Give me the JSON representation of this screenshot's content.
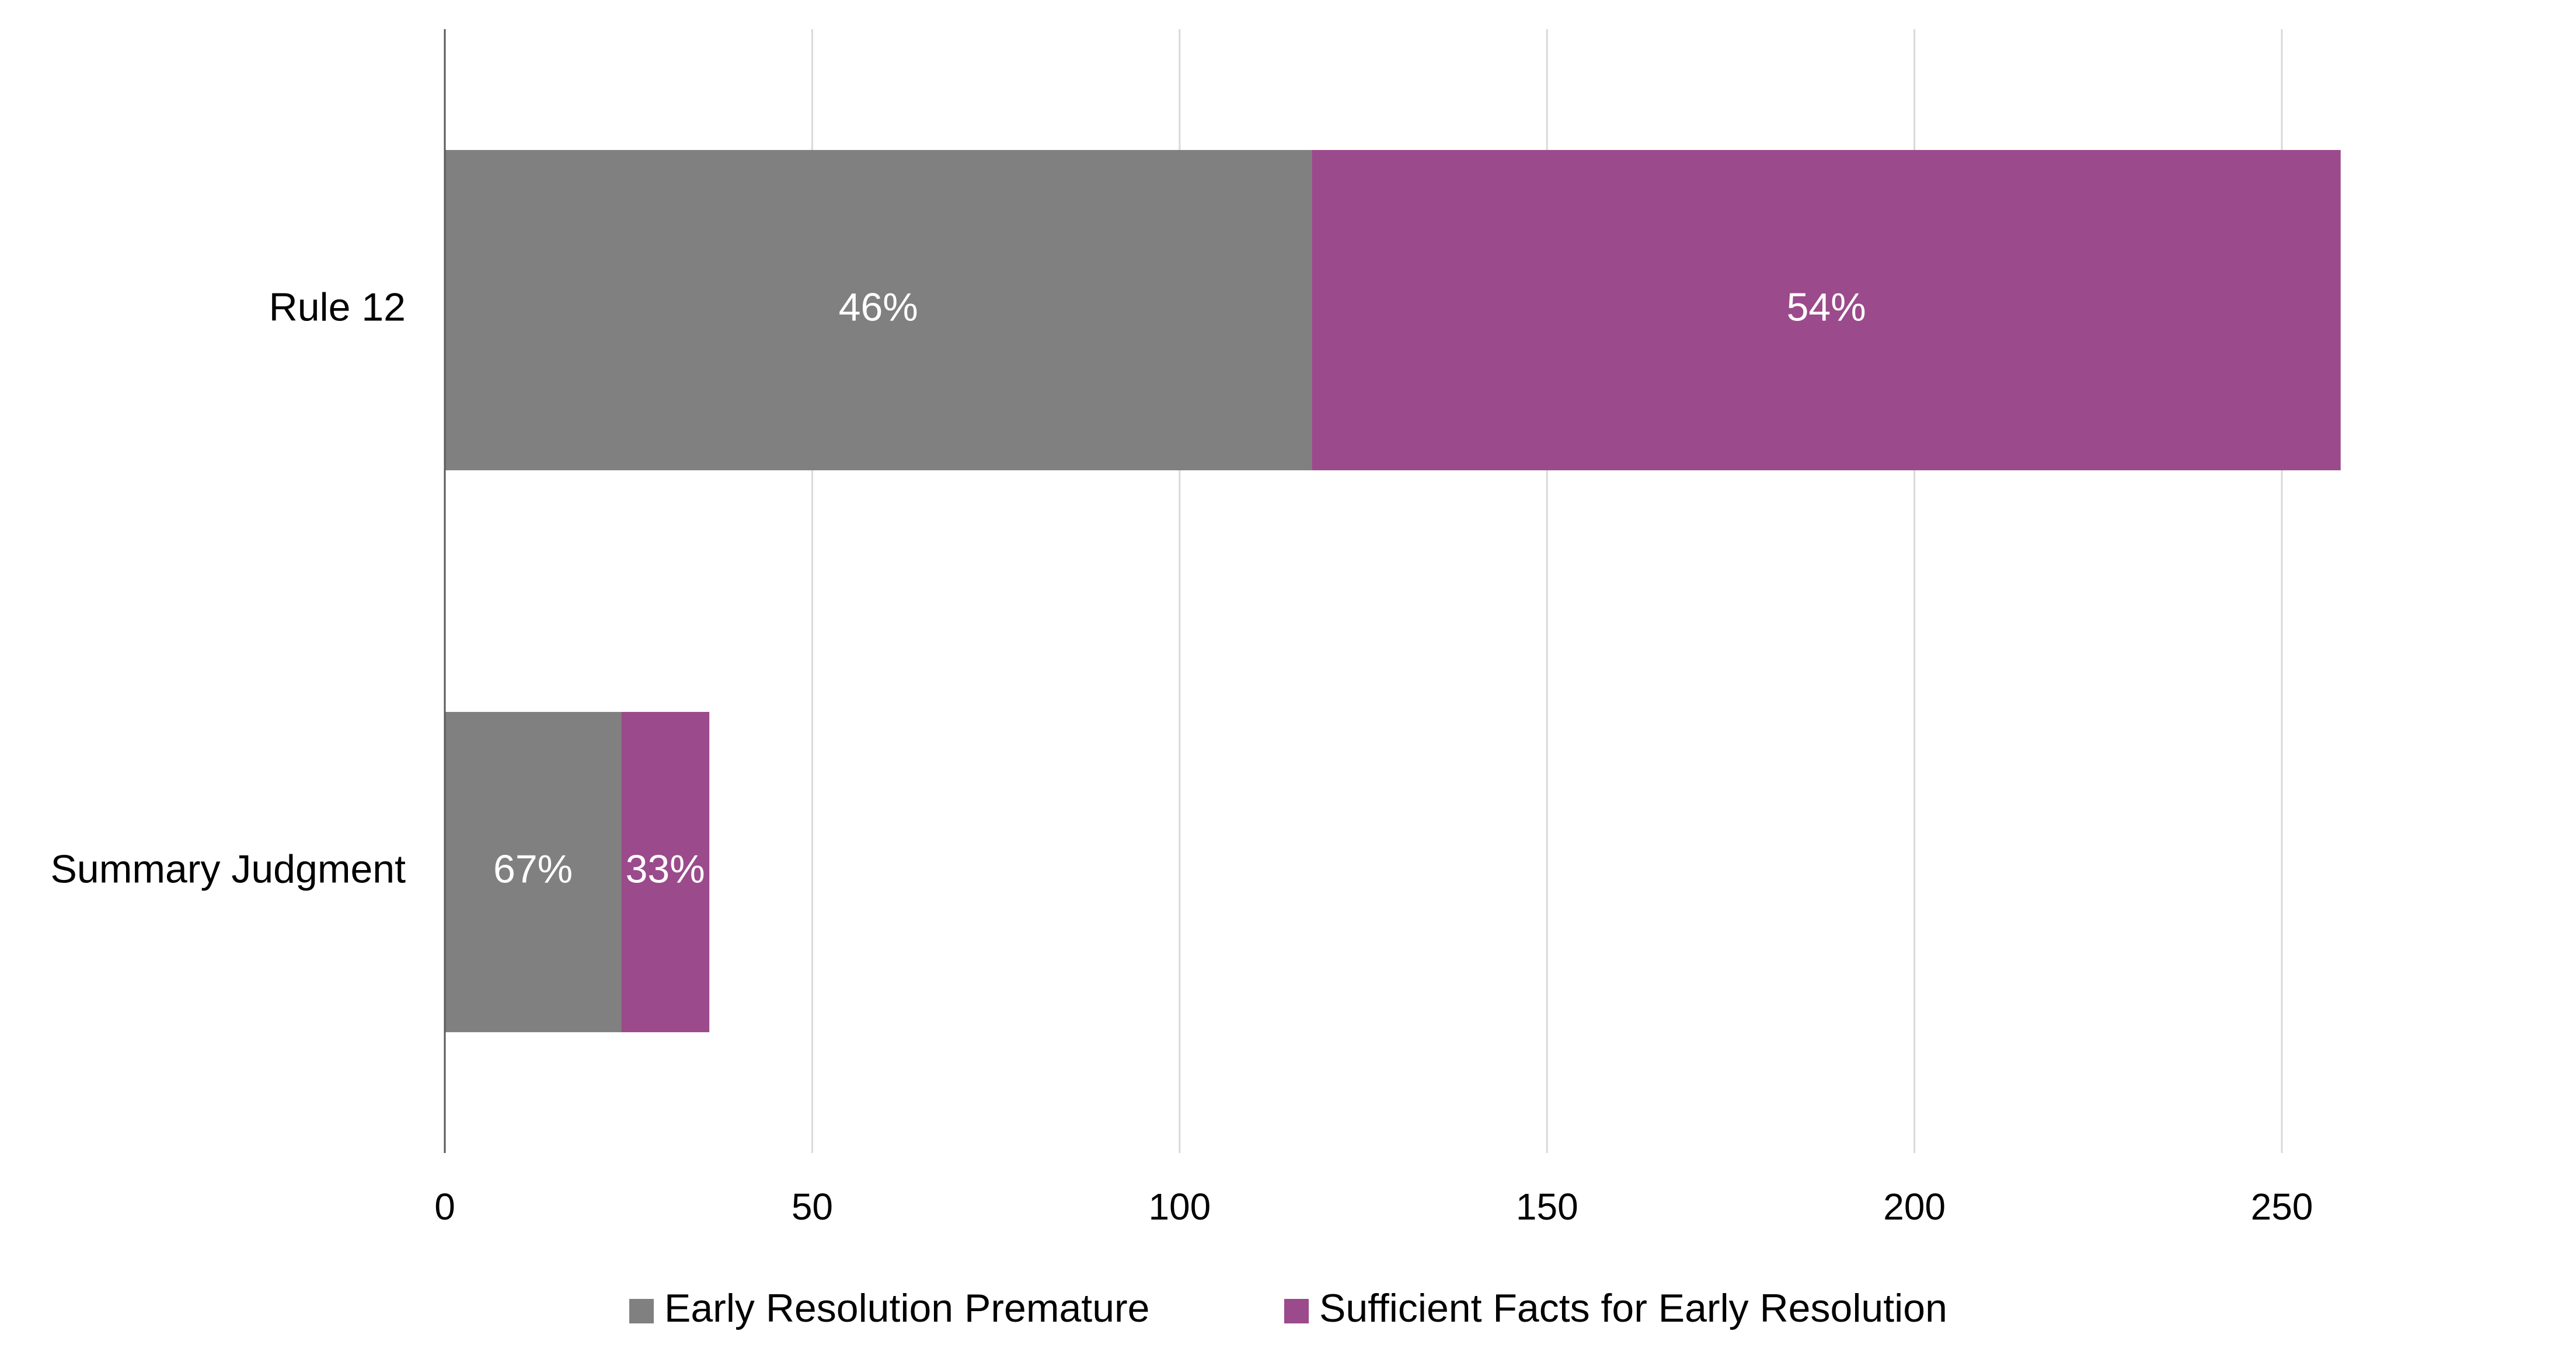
{
  "chart_data": {
    "type": "bar",
    "orientation": "horizontal",
    "stacked": true,
    "title": "",
    "xlabel": "",
    "ylabel": "",
    "categories": [
      "Rule 12",
      "Summary Judgment"
    ],
    "series": [
      {
        "name": "Early Resolution Premature",
        "color": "#808080",
        "values": [
          118,
          24
        ],
        "labels": [
          "46%",
          "67%"
        ]
      },
      {
        "name": "Sufficient Facts for Early Resolution",
        "color": "#9b4a8b",
        "values": [
          140,
          12
        ],
        "labels": [
          "54%",
          "33%"
        ]
      }
    ],
    "xlim": [
      0,
      260
    ],
    "xticks": [
      "0",
      "50",
      "100",
      "150",
      "200",
      "250"
    ],
    "grid": "vertical",
    "legend": "bottom"
  }
}
